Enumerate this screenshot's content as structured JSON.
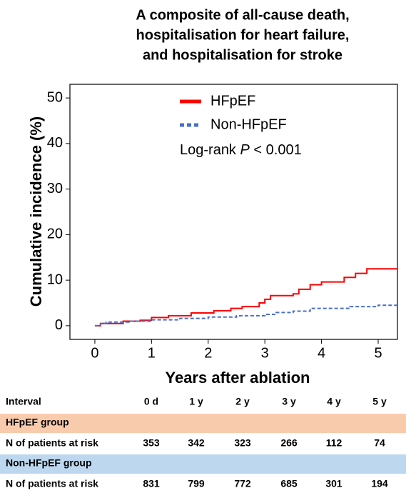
{
  "chart_data": {
    "type": "line",
    "step": "post",
    "title": [
      "A composite of all-cause death,",
      "hospitalisation for heart failure,",
      "and hospitalisation for stroke"
    ],
    "xlabel": "Years after ablation",
    "ylabel": "Cumulative incidence (%)",
    "xlim": [
      -0.44,
      5.34
    ],
    "xticks": [
      0,
      1,
      2,
      3,
      4,
      5
    ],
    "ylim": [
      -3,
      53
    ],
    "yticks": [
      0,
      10,
      20,
      30,
      40,
      50
    ],
    "annotation": {
      "text": "Log-rank",
      "italic": "P",
      "rest": "< 0.001"
    },
    "series": [
      {
        "name": "HFpEF",
        "color": "#ff0000",
        "dash": "none",
        "x": [
          0,
          0.1,
          0.5,
          0.8,
          1.0,
          1.3,
          1.7,
          2.1,
          2.4,
          2.6,
          2.9,
          3.0,
          3.1,
          3.5,
          3.6,
          3.8,
          4.0,
          4.4,
          4.6,
          4.8,
          5.34
        ],
        "values": [
          0,
          0.5,
          1.0,
          1.2,
          1.8,
          2.2,
          2.8,
          3.3,
          3.8,
          4.2,
          5.0,
          5.8,
          6.6,
          7.0,
          8.0,
          9.0,
          9.6,
          10.6,
          11.5,
          12.5,
          12.5
        ]
      },
      {
        "name": "Non-HFpEF",
        "color": "#4a6fc9",
        "dash": "5,3",
        "x": [
          0,
          0.1,
          0.2,
          0.6,
          1.0,
          1.5,
          2.0,
          2.5,
          3.0,
          3.2,
          3.5,
          3.8,
          4.5,
          5.0,
          5.34
        ],
        "values": [
          0,
          0.5,
          0.8,
          1.0,
          1.3,
          1.6,
          1.9,
          2.2,
          2.5,
          2.9,
          3.2,
          3.8,
          4.2,
          4.5,
          4.5
        ]
      }
    ]
  },
  "risk_table": {
    "header": [
      "Interval",
      "0 d",
      "1 y",
      "2 y",
      "3 y",
      "4 y",
      "5 y"
    ],
    "groups": [
      {
        "name": "HFpEF group",
        "color": "#f8cbad",
        "row_label": "N of patients at risk",
        "values": [
          "353",
          "342",
          "323",
          "266",
          "112",
          "74"
        ]
      },
      {
        "name": "Non-HFpEF group",
        "color": "#bdd7ee",
        "row_label": "N of patients at risk",
        "values": [
          "831",
          "799",
          "772",
          "685",
          "301",
          "194"
        ]
      }
    ]
  }
}
